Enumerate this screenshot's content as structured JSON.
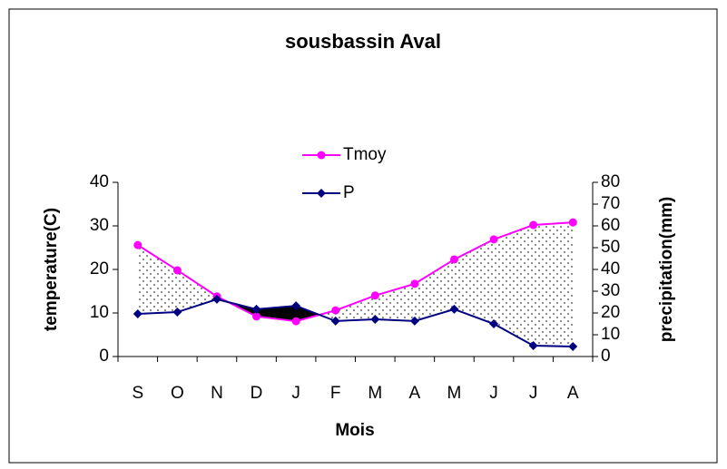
{
  "chart_data": {
    "type": "line",
    "title": "sousbassin Aval",
    "x_label": "Mois",
    "y_label": "temperature(C)",
    "y2_label": "precipitation(mm)",
    "categories": [
      "S",
      "O",
      "N",
      "D",
      "J",
      "F",
      "M",
      "A",
      "M",
      "J",
      "J",
      "A"
    ],
    "series": [
      {
        "name": "Tmoy",
        "color": "#ff00ff",
        "marker": "circle",
        "values": [
          25.6,
          19.8,
          13.8,
          9.2,
          8.1,
          10.6,
          14,
          16.7,
          22.3,
          26.9,
          30.2,
          30.8
        ]
      },
      {
        "name": "P",
        "color": "#000080",
        "marker": "diamond",
        "axis": "y2",
        "values": [
          19.6,
          20.4,
          26.3,
          21.7,
          23.3,
          16.3,
          17.1,
          16.3,
          21.7,
          15,
          5,
          4.6
        ]
      }
    ],
    "ylim": [
      0,
      40
    ],
    "yticks": [
      0,
      10,
      20,
      30,
      40
    ],
    "y2lim": [
      0,
      80
    ],
    "y2ticks": [
      0,
      10,
      20,
      30,
      40,
      50,
      60,
      70,
      80
    ]
  }
}
